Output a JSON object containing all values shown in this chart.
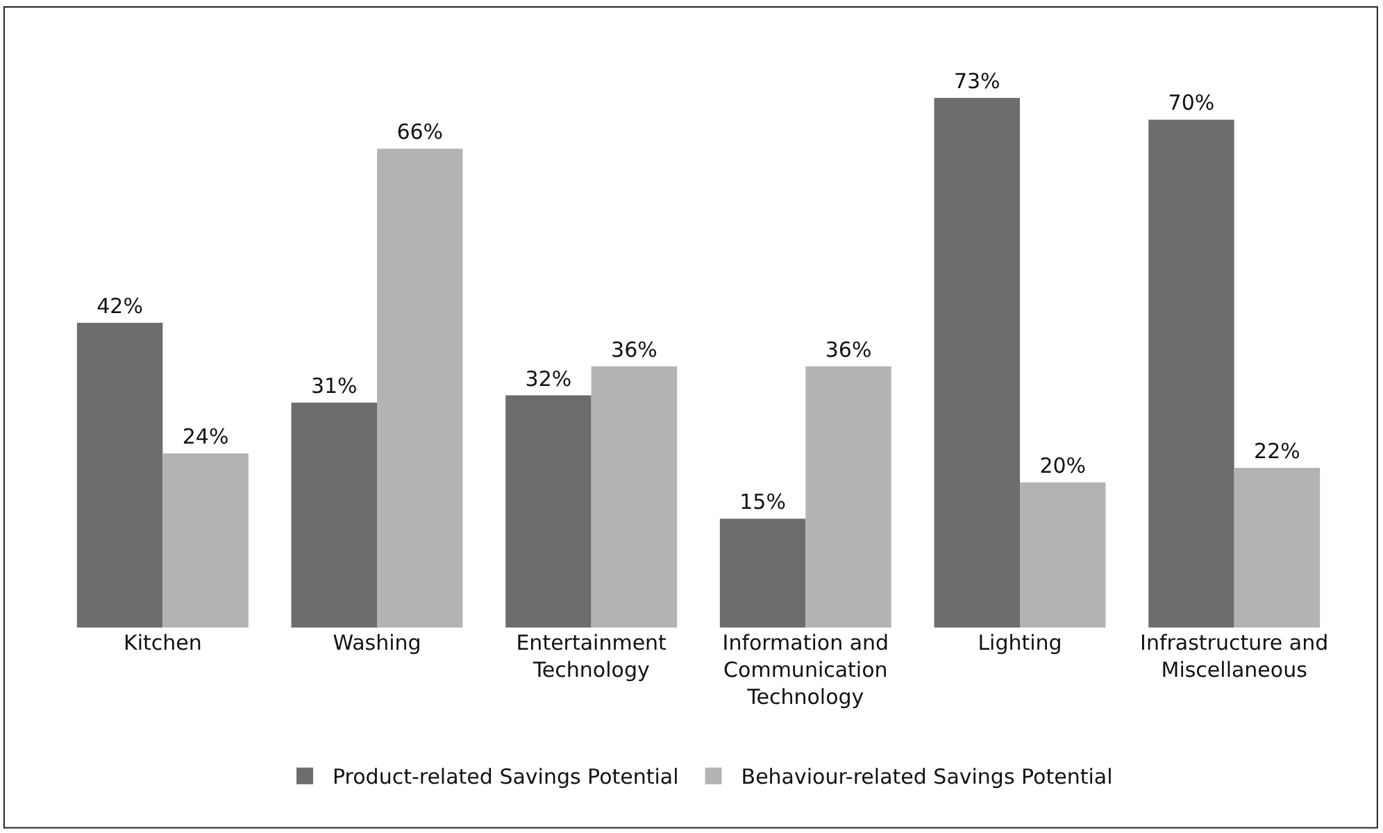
{
  "chart_data": {
    "type": "bar",
    "categories": [
      "Kitchen",
      "Washing",
      "Entertainment Technology",
      "Information and Communication Technology",
      "Lighting",
      "Infrastructure and Miscellaneous"
    ],
    "series": [
      {
        "name": "Product-related Savings Potential",
        "color": "#6d6d6d",
        "values": [
          42,
          31,
          32,
          15,
          73,
          70
        ],
        "value_labels": [
          "42%",
          "31%",
          "32%",
          "15%",
          "73%",
          "70%"
        ]
      },
      {
        "name": "Behaviour-related Savings Potential",
        "color": "#b3b3b3",
        "values": [
          24,
          66,
          36,
          36,
          20,
          22
        ],
        "value_labels": [
          "24%",
          "66%",
          "36%",
          "36%",
          "20%",
          "22%"
        ]
      }
    ],
    "legend": "bottom"
  }
}
